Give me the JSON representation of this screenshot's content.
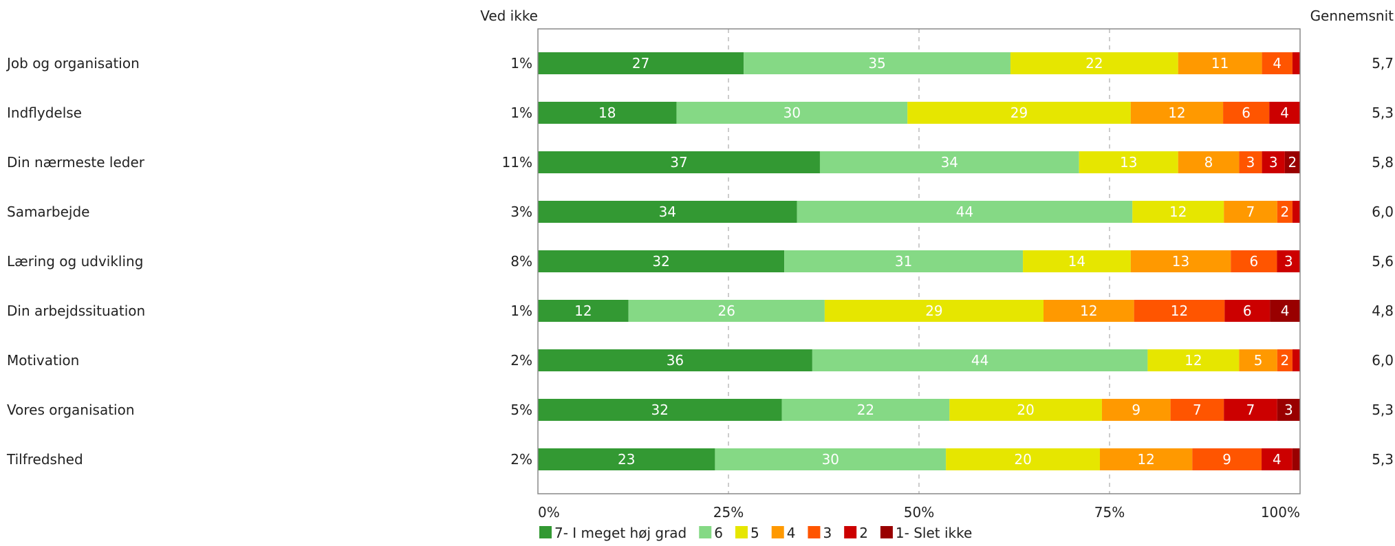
{
  "chart_data": {
    "type": "bar",
    "orientation": "horizontal",
    "stacked": true,
    "left_header": "Ved ikke",
    "right_header": "Gennemsnit",
    "categories": [
      "Job og organisation",
      "Indflydelse",
      "Din nærmeste leder",
      "Samarbejde",
      "Læring og udvikling",
      "Din arbejdssituation",
      "Motivation",
      "Vores organisation",
      "Tilfredshed"
    ],
    "ved_ikke": [
      "1%",
      "1%",
      "11%",
      "3%",
      "8%",
      "1%",
      "2%",
      "5%",
      "2%"
    ],
    "gennemsnit": [
      "5,7",
      "5,3",
      "5,8",
      "6,0",
      "5,6",
      "4,8",
      "6,0",
      "5,3",
      "5,3"
    ],
    "series": [
      {
        "name": "7- I meget høj grad",
        "color": "#339933",
        "values": [
          27,
          18,
          37,
          34,
          32,
          12,
          36,
          32,
          23
        ]
      },
      {
        "name": "6",
        "color": "#85d985",
        "values": [
          35,
          30,
          34,
          44,
          31,
          26,
          44,
          22,
          30
        ]
      },
      {
        "name": "5",
        "color": "#e6e600",
        "values": [
          22,
          29,
          13,
          12,
          14,
          29,
          12,
          20,
          20
        ]
      },
      {
        "name": "4",
        "color": "#ff9900",
        "values": [
          11,
          12,
          8,
          7,
          13,
          12,
          5,
          9,
          12
        ]
      },
      {
        "name": "3",
        "color": "#ff5500",
        "values": [
          4,
          6,
          3,
          2,
          6,
          12,
          2,
          7,
          9
        ]
      },
      {
        "name": "2",
        "color": "#cc0000",
        "values": [
          1,
          4,
          3,
          1,
          3,
          6,
          1,
          7,
          4
        ]
      },
      {
        "name": "1- Slet ikke",
        "color": "#990000",
        "values": [
          0,
          0,
          2,
          0,
          0,
          4,
          0,
          3,
          1
        ]
      }
    ],
    "segment_labels": [
      [
        "27",
        "35",
        "22",
        "11",
        "4",
        "",
        ""
      ],
      [
        "18",
        "30",
        "29",
        "12",
        "6",
        "4",
        ""
      ],
      [
        "37",
        "34",
        "13",
        "8",
        "3",
        "3",
        "2"
      ],
      [
        "34",
        "44",
        "12",
        "7",
        "2",
        "",
        ""
      ],
      [
        "32",
        "31",
        "14",
        "13",
        "6",
        "3",
        ""
      ],
      [
        "12",
        "26",
        "29",
        "12",
        "12",
        "6",
        "4"
      ],
      [
        "36",
        "44",
        "12",
        "5",
        "2",
        "",
        ""
      ],
      [
        "32",
        "22",
        "20",
        "9",
        "7",
        "7",
        "3"
      ],
      [
        "23",
        "30",
        "20",
        "12",
        "9",
        "4",
        ""
      ]
    ],
    "x_ticks": [
      "0%",
      "25%",
      "50%",
      "75%",
      "100%"
    ],
    "xlim": [
      0,
      100
    ],
    "grid": "vertical dashed",
    "legend_position": "bottom"
  }
}
